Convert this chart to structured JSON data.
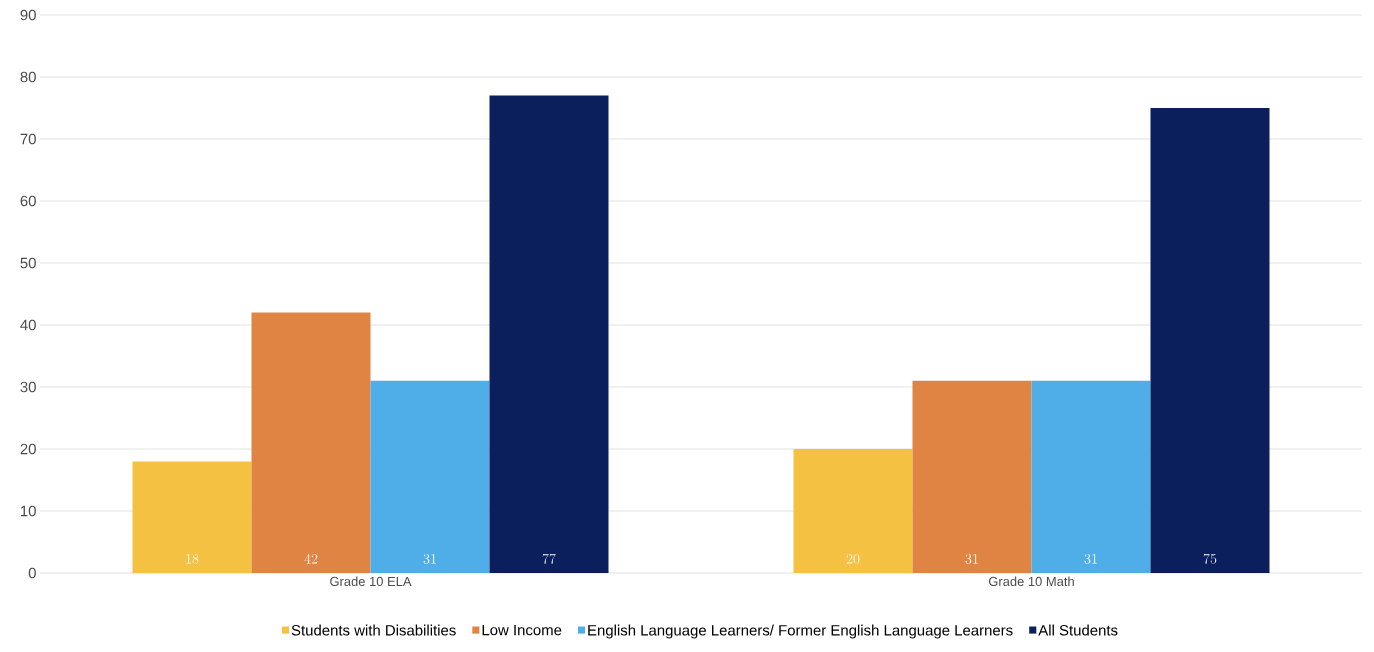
{
  "chart_data": {
    "type": "bar",
    "categories": [
      "Grade 10 ELA",
      "Grade 10 Math"
    ],
    "series": [
      {
        "name": "Students with Disabilities",
        "color": "#f4c142",
        "values": [
          18,
          20
        ]
      },
      {
        "name": "Low Income",
        "color": "#e08443",
        "values": [
          42,
          31
        ]
      },
      {
        "name": "English Language Learners/ Former English Language Learners",
        "color": "#4faee8",
        "values": [
          31,
          31
        ]
      },
      {
        "name": "All Students",
        "color": "#0a1f5c",
        "values": [
          77,
          75
        ]
      }
    ],
    "ylim": [
      0,
      90
    ],
    "yticks": [
      0,
      10,
      20,
      30,
      40,
      50,
      60,
      70,
      80,
      90
    ],
    "grid": "y",
    "legend": "bottom",
    "data_labels": true
  }
}
